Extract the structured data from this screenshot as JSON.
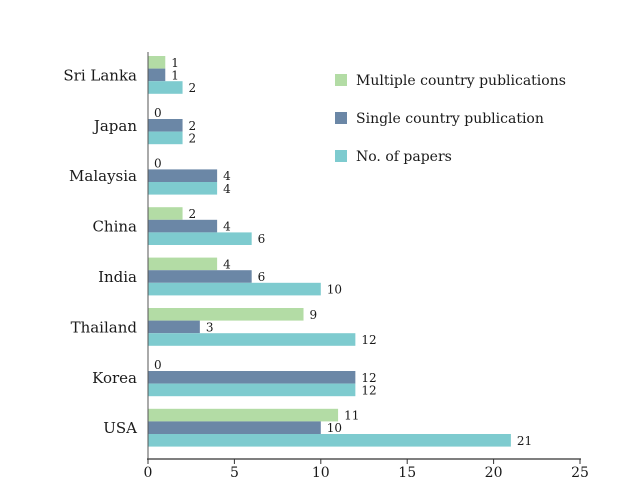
{
  "chart_data": {
    "type": "bar",
    "orientation": "horizontal",
    "categories": [
      "Sri Lanka",
      "Japan",
      "Malaysia",
      "China",
      "India",
      "Thailand",
      "Korea",
      "USA"
    ],
    "series": [
      {
        "name": "Multiple country publications",
        "color": "#b3dca5",
        "values": [
          1,
          0,
          0,
          2,
          4,
          9,
          0,
          11
        ]
      },
      {
        "name": "Single country publication",
        "color": "#6b87a6",
        "values": [
          1,
          2,
          4,
          4,
          6,
          3,
          12,
          10
        ]
      },
      {
        "name": "No. of papers",
        "color": "#7ecbcf",
        "values": [
          2,
          2,
          4,
          6,
          10,
          12,
          12,
          21
        ]
      }
    ],
    "xlim": [
      0,
      25
    ],
    "xticks": [
      "0",
      "5",
      "10",
      "15",
      "20",
      "25"
    ],
    "grid": false,
    "legend_position": "top-right"
  }
}
